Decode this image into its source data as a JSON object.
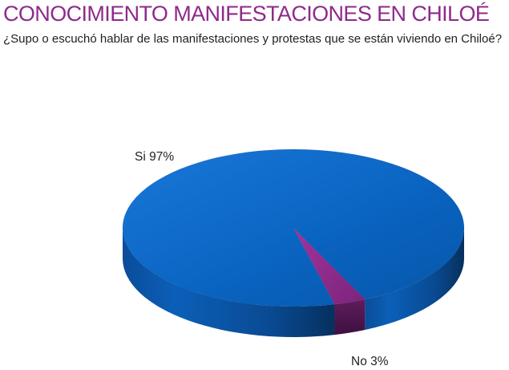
{
  "page": {
    "title": "CONOCIMIENTO MANIFESTACIONES EN CHILOÉ",
    "question": "¿Supo o escuchó hablar de las manifestaciones y protestas que se están viviendo en Chiloé?"
  },
  "chart_data": {
    "type": "pie",
    "style": "3d",
    "title": "CONOCIMIENTO MANIFESTACIONES EN CHILOÉ",
    "subtitle": "¿Supo o escuchó hablar de las manifestaciones y protestas que se están viviendo en Chiloé?",
    "slices": [
      {
        "name": "Si",
        "value": 97,
        "label": "Si 97%",
        "color": "#0a64c2"
      },
      {
        "name": "No",
        "value": 3,
        "label": "No 3%",
        "color": "#8e2a8b"
      }
    ],
    "legend": "none"
  }
}
